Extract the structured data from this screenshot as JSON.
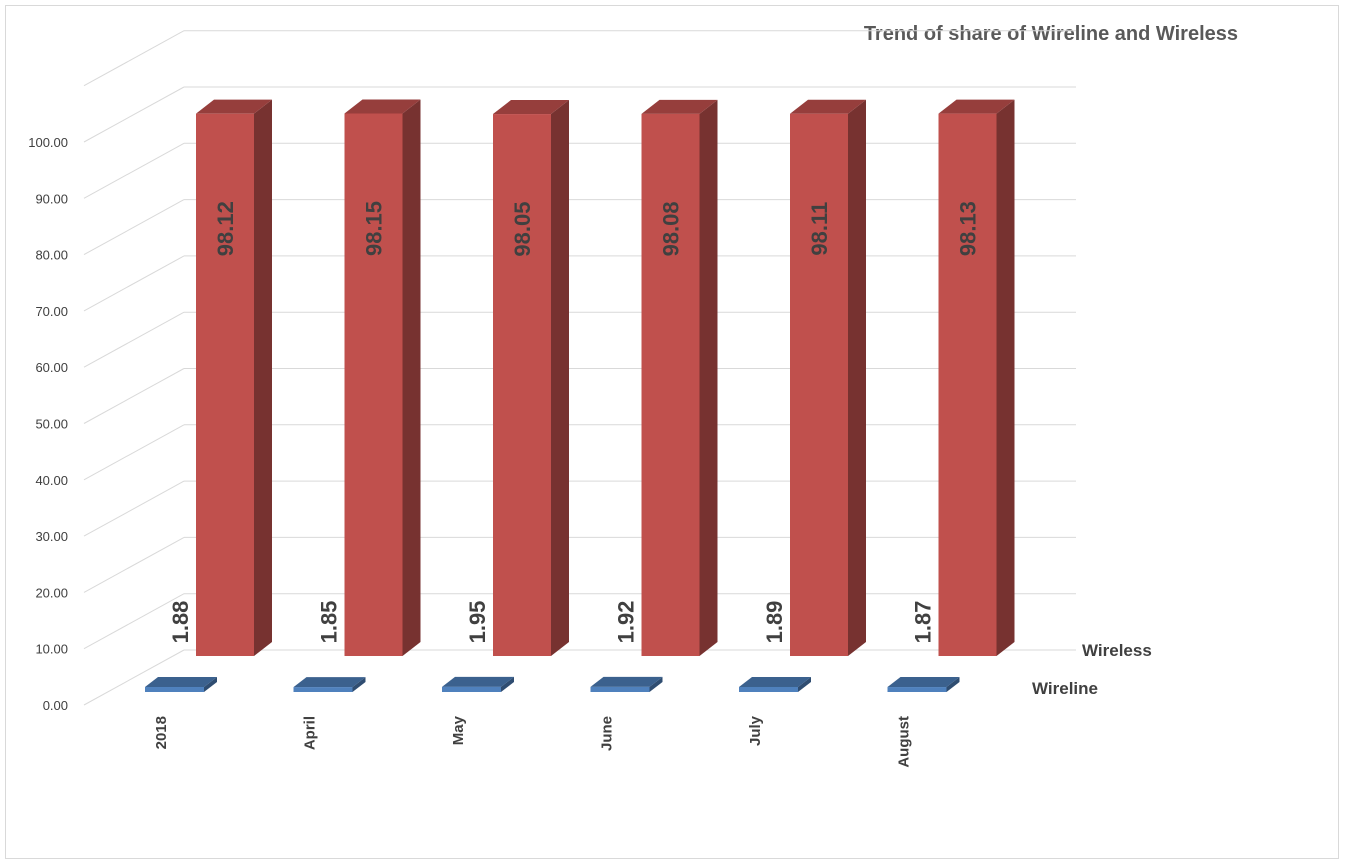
{
  "chart_data": {
    "type": "bar",
    "title": "Trend of  share of Wireline and Wireless",
    "categories": [
      "2018",
      "April",
      "May",
      "June",
      "July",
      "August"
    ],
    "series": [
      {
        "name": "Wireline",
        "values": [
          1.88,
          1.85,
          1.95,
          1.92,
          1.89,
          1.87
        ],
        "color": "#4F81BD"
      },
      {
        "name": "Wireless",
        "values": [
          98.12,
          98.15,
          98.05,
          98.08,
          98.11,
          98.13
        ],
        "color": "#C0504D"
      }
    ],
    "yticks": [
      "0.00",
      "10.00",
      "20.00",
      "30.00",
      "40.00",
      "50.00",
      "60.00",
      "70.00",
      "80.00",
      "90.00",
      "100.00"
    ],
    "ylim": [
      0,
      110
    ],
    "grid": true,
    "style": "3d-column",
    "legend": "series-labels-right"
  }
}
